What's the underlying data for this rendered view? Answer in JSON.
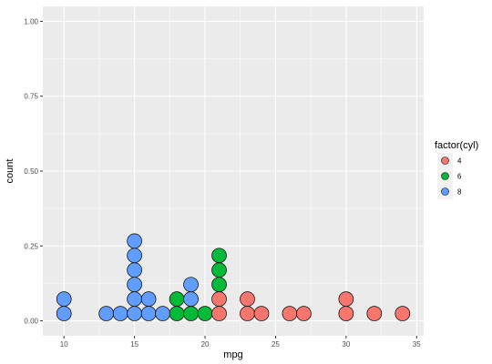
{
  "chart_data": {
    "type": "dotplot",
    "xlabel": "mpg",
    "ylabel": "count",
    "xlim": [
      8.5,
      35.5
    ],
    "ylim": [
      -0.05,
      1.05
    ],
    "x_ticks": [
      "10",
      "15",
      "20",
      "25",
      "30",
      "35"
    ],
    "y_ticks": [
      "0.00",
      "0.25",
      "0.50",
      "0.75",
      "1.00"
    ],
    "grid": true,
    "legend": {
      "title": "factor(cyl)",
      "position": "right",
      "entries": [
        {
          "label": "4",
          "color": "#F8766D"
        },
        {
          "label": "6",
          "color": "#00BA38"
        },
        {
          "label": "8",
          "color": "#619CFF"
        }
      ]
    },
    "bins": [
      {
        "x": 10.0,
        "stack": [
          "8",
          "8"
        ]
      },
      {
        "x": 13.0,
        "stack": [
          "8"
        ]
      },
      {
        "x": 14.0,
        "stack": [
          "8"
        ]
      },
      {
        "x": 15.0,
        "stack": [
          "8",
          "8",
          "8",
          "8",
          "8",
          "8"
        ]
      },
      {
        "x": 16.0,
        "stack": [
          "8",
          "8"
        ]
      },
      {
        "x": 17.0,
        "stack": [
          "8"
        ]
      },
      {
        "x": 18.0,
        "stack": [
          "6",
          "6"
        ]
      },
      {
        "x": 19.0,
        "stack": [
          "6",
          "8",
          "8"
        ]
      },
      {
        "x": 20.0,
        "stack": [
          "6"
        ]
      },
      {
        "x": 21.0,
        "stack": [
          "4",
          "4",
          "6",
          "6",
          "6"
        ]
      },
      {
        "x": 23.0,
        "stack": [
          "4",
          "4"
        ]
      },
      {
        "x": 24.0,
        "stack": [
          "4"
        ]
      },
      {
        "x": 26.0,
        "stack": [
          "4"
        ]
      },
      {
        "x": 27.0,
        "stack": [
          "4"
        ]
      },
      {
        "x": 30.0,
        "stack": [
          "4",
          "4"
        ]
      },
      {
        "x": 32.0,
        "stack": [
          "4"
        ]
      },
      {
        "x": 34.0,
        "stack": [
          "4"
        ]
      }
    ]
  },
  "colors": {
    "panel": "#EBEBEB",
    "grid": "#FFFFFF",
    "dot_stroke": "#000000"
  }
}
